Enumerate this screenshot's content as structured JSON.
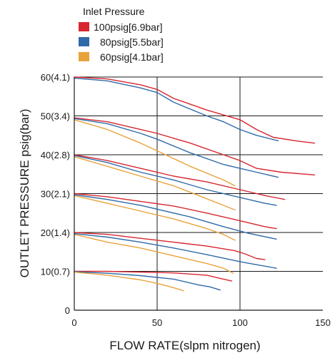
{
  "chart_data": {
    "type": "line",
    "xlabel": "FLOW RATE(slpm nitrogen)",
    "ylabel": "OUTLET PRESSURE psig(bar)",
    "xlim": [
      0,
      150
    ],
    "ylim": [
      0,
      60
    ],
    "x_ticks": [
      "0",
      "50",
      "100",
      "150"
    ],
    "y_ticks": [
      "0",
      "10(0.7)",
      "20(1.4)",
      "30(2.1)",
      "40(2.8)",
      "50(3.4)",
      "60(4.1)"
    ],
    "grid": true,
    "legend": {
      "title": "Inlet Pressure",
      "position": "top-left",
      "entries": [
        {
          "label": "100psig[6.9bar]",
          "color": "#d7262f"
        },
        {
          "label": "80psig[5.5bar]",
          "color": "#2f6aa8"
        },
        {
          "label": "60psig[4.1bar]",
          "color": "#e9a23b"
        }
      ]
    },
    "series": [
      {
        "inlet": "100psig[6.9bar]",
        "color": "#d7262f",
        "points": [
          [
            0,
            60
          ],
          [
            20,
            59.5
          ],
          [
            40,
            58
          ],
          [
            50,
            56.8
          ],
          [
            60,
            54.5
          ],
          [
            80,
            51.5
          ],
          [
            100,
            49
          ],
          [
            110,
            46.5
          ],
          [
            120,
            44.5
          ],
          [
            135,
            43.5
          ],
          [
            145,
            43
          ]
        ]
      },
      {
        "inlet": "80psig[5.5bar]",
        "color": "#2f6aa8",
        "points": [
          [
            0,
            59.7
          ],
          [
            20,
            59
          ],
          [
            40,
            57.2
          ],
          [
            50,
            56
          ],
          [
            60,
            53.5
          ],
          [
            80,
            50
          ],
          [
            90,
            48.5
          ],
          [
            100,
            46.5
          ],
          [
            110,
            45
          ],
          [
            123,
            43.6
          ]
        ]
      },
      {
        "inlet": "100psig[6.9bar]",
        "color": "#d7262f",
        "points": [
          [
            0,
            49.5
          ],
          [
            20,
            48.5
          ],
          [
            40,
            46.5
          ],
          [
            50,
            45.5
          ],
          [
            70,
            43
          ],
          [
            90,
            40
          ],
          [
            100,
            38.5
          ],
          [
            110,
            36.5
          ],
          [
            125,
            35.5
          ],
          [
            145,
            34.8
          ]
        ]
      },
      {
        "inlet": "80psig[5.5bar]",
        "color": "#2f6aa8",
        "points": [
          [
            0,
            49.3
          ],
          [
            20,
            48
          ],
          [
            40,
            45.5
          ],
          [
            50,
            44
          ],
          [
            70,
            40.5
          ],
          [
            90,
            37.5
          ],
          [
            100,
            36.5
          ],
          [
            110,
            35.5
          ],
          [
            123,
            34.2
          ]
        ]
      },
      {
        "inlet": "60psig[4.1bar]",
        "color": "#e9a23b",
        "points": [
          [
            0,
            49
          ],
          [
            20,
            46.5
          ],
          [
            40,
            43
          ],
          [
            50,
            41
          ],
          [
            70,
            37
          ],
          [
            90,
            33.5
          ],
          [
            97,
            32
          ]
        ]
      },
      {
        "inlet": "100psig[6.9bar]",
        "color": "#d7262f",
        "points": [
          [
            0,
            40
          ],
          [
            20,
            38.5
          ],
          [
            40,
            36.5
          ],
          [
            60,
            34.5
          ],
          [
            80,
            33
          ],
          [
            100,
            31
          ],
          [
            115,
            29.5
          ],
          [
            127,
            28.5
          ]
        ]
      },
      {
        "inlet": "80psig[5.5bar]",
        "color": "#2f6aa8",
        "points": [
          [
            0,
            39.8
          ],
          [
            20,
            38
          ],
          [
            40,
            35.5
          ],
          [
            60,
            33.5
          ],
          [
            80,
            31
          ],
          [
            100,
            29
          ],
          [
            115,
            27.5
          ],
          [
            122,
            27
          ]
        ]
      },
      {
        "inlet": "60psig[4.1bar]",
        "color": "#e9a23b",
        "points": [
          [
            0,
            39.5
          ],
          [
            20,
            37
          ],
          [
            40,
            34.5
          ],
          [
            60,
            32
          ],
          [
            75,
            29.5
          ],
          [
            90,
            27
          ],
          [
            97,
            25.8
          ]
        ]
      },
      {
        "inlet": "100psig[6.9bar]",
        "color": "#d7262f",
        "points": [
          [
            0,
            30
          ],
          [
            20,
            29.2
          ],
          [
            40,
            28
          ],
          [
            60,
            26.8
          ],
          [
            80,
            25
          ],
          [
            100,
            23
          ],
          [
            115,
            21.5
          ],
          [
            122,
            21
          ]
        ]
      },
      {
        "inlet": "80psig[5.5bar]",
        "color": "#2f6aa8",
        "points": [
          [
            0,
            29.7
          ],
          [
            20,
            28.5
          ],
          [
            40,
            27
          ],
          [
            70,
            24
          ],
          [
            90,
            21.5
          ],
          [
            105,
            19.8
          ],
          [
            122,
            18.3
          ]
        ]
      },
      {
        "inlet": "60psig[4.1bar]",
        "color": "#e9a23b",
        "points": [
          [
            0,
            29.5
          ],
          [
            20,
            27.5
          ],
          [
            40,
            25.5
          ],
          [
            60,
            23.5
          ],
          [
            80,
            21
          ],
          [
            90,
            19.5
          ],
          [
            97,
            18
          ]
        ]
      },
      {
        "inlet": "100psig[6.9bar]",
        "color": "#d7262f",
        "points": [
          [
            0,
            20
          ],
          [
            20,
            19.5
          ],
          [
            40,
            18.5
          ],
          [
            60,
            17.5
          ],
          [
            80,
            16.5
          ],
          [
            97,
            15.3
          ],
          [
            103,
            14.5
          ],
          [
            110,
            13.3
          ],
          [
            115,
            13
          ]
        ]
      },
      {
        "inlet": "80psig[5.5bar]",
        "color": "#2f6aa8",
        "points": [
          [
            0,
            19.7
          ],
          [
            20,
            18.8
          ],
          [
            40,
            17.5
          ],
          [
            60,
            16
          ],
          [
            80,
            14.3
          ],
          [
            100,
            12.5
          ],
          [
            110,
            11.7
          ],
          [
            122,
            10.8
          ]
        ]
      },
      {
        "inlet": "60psig[4.1bar]",
        "color": "#e9a23b",
        "points": [
          [
            0,
            19.5
          ],
          [
            20,
            17.5
          ],
          [
            40,
            16
          ],
          [
            60,
            14
          ],
          [
            80,
            12
          ],
          [
            90,
            10.8
          ],
          [
            96,
            9.5
          ]
        ]
      },
      {
        "inlet": "100psig[6.9bar]",
        "color": "#d7262f",
        "points": [
          [
            0,
            10
          ],
          [
            20,
            10
          ],
          [
            40,
            9.8
          ],
          [
            60,
            9.6
          ],
          [
            80,
            9
          ],
          [
            90,
            8
          ],
          [
            95,
            7.5
          ]
        ]
      },
      {
        "inlet": "80psig[5.5bar]",
        "color": "#2f6aa8",
        "points": [
          [
            0,
            9.9
          ],
          [
            20,
            9.5
          ],
          [
            40,
            8.9
          ],
          [
            60,
            8
          ],
          [
            75,
            6.5
          ],
          [
            82,
            6
          ],
          [
            88,
            5.2
          ]
        ]
      },
      {
        "inlet": "60psig[4.1bar]",
        "color": "#e9a23b",
        "points": [
          [
            0,
            9.8
          ],
          [
            20,
            9
          ],
          [
            40,
            7.8
          ],
          [
            50,
            6.9
          ],
          [
            60,
            5.8
          ],
          [
            66,
            5
          ]
        ]
      }
    ]
  }
}
